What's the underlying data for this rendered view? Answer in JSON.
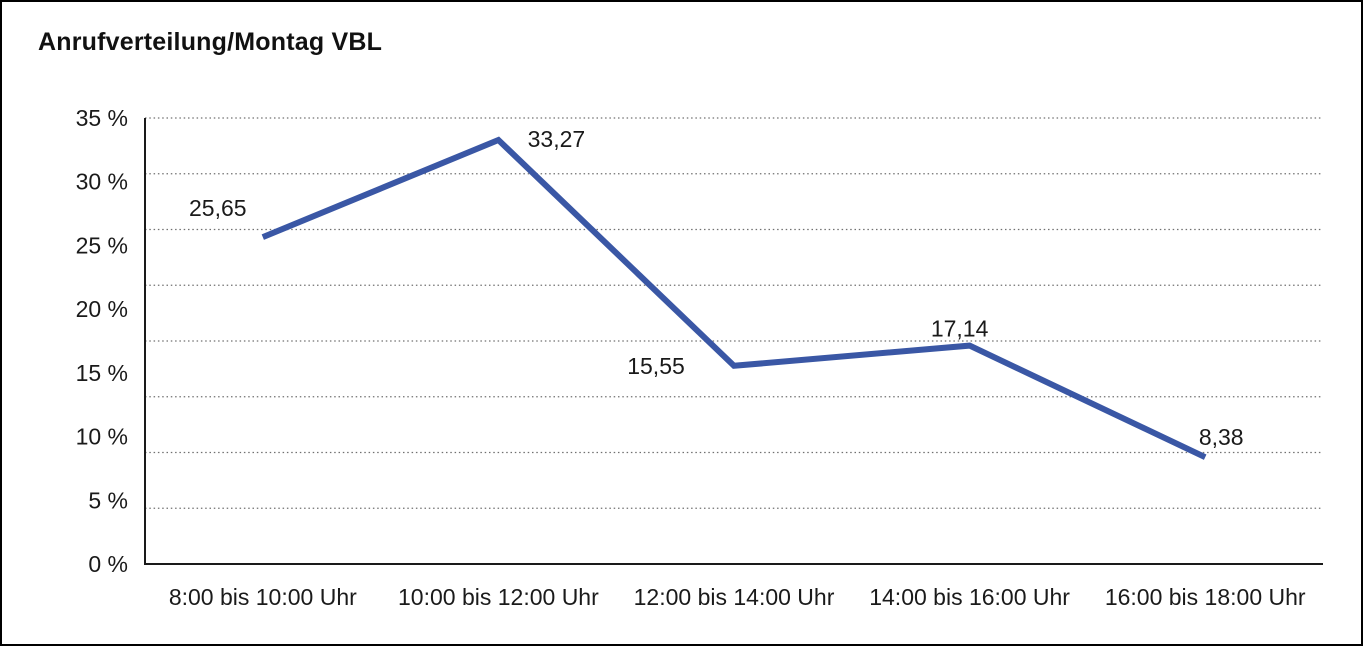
{
  "title": "Anrufverteilung/Montag VBL",
  "chart_data": {
    "type": "line",
    "title": "Anrufverteilung/Montag VBL",
    "categories": [
      "8:00 bis 10:00 Uhr",
      "10:00 bis 12:00 Uhr",
      "12:00 bis 14:00 Uhr",
      "14:00 bis 16:00 Uhr",
      "16:00 bis 18:00 Uhr"
    ],
    "values": [
      25.65,
      33.27,
      15.55,
      17.14,
      8.38
    ],
    "data_labels": [
      "25,65",
      "33,27",
      "15,55",
      "17,14",
      "8,38"
    ],
    "y_tick_labels": [
      "35 %",
      "30 %",
      "25 %",
      "20 %",
      "15 %",
      "10 %",
      "5 %",
      "0 %"
    ],
    "ylim": [
      0,
      35
    ],
    "xlabel": "",
    "ylabel": "",
    "legend": "none",
    "grid": "horizontal-dotted",
    "line_color": "#3A57A5",
    "grid_color": "#707070",
    "axis_color": "#1a1a1a",
    "text_color": "#1a1a1a"
  }
}
